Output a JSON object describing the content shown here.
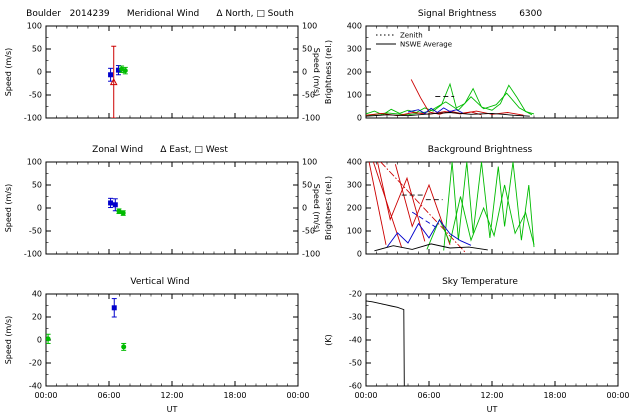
{
  "header": {
    "station": "Boulder",
    "date_yyyyddd": "2014239"
  },
  "axis": {
    "xlim": [
      0,
      24
    ],
    "x_ticks": [
      0,
      6,
      12,
      18,
      24
    ],
    "x_tick_labels": [
      "00:00",
      "06:00",
      "12:00",
      "18:00",
      "00:00"
    ],
    "x_label": "UT"
  },
  "colors": {
    "north_south": "#0000cc",
    "zenith_green": "#00bb00",
    "error_red": "#cc0000",
    "black": "#000000"
  },
  "chart_data": [
    {
      "id": "meridional-wind",
      "grid": {
        "row": 0,
        "col": 0
      },
      "type": "scatter",
      "title": "Boulder   2014239      Meridional Wind      Δ North, □ South",
      "ylabel": "Speed (m/s)",
      "ylabel_right": "Speed (m/s)",
      "ylim": [
        -100,
        100
      ],
      "yticks": [
        -100,
        -50,
        0,
        50,
        100
      ],
      "mirror_right": true,
      "points": [
        {
          "x": 6.15,
          "y": -6,
          "err": 14,
          "color": "#0000cc",
          "marker": "square"
        },
        {
          "x": 6.45,
          "y": -22,
          "err": 78,
          "color": "#cc0000",
          "marker": "triangle"
        },
        {
          "x": 6.9,
          "y": 4,
          "err": 10,
          "color": "#0000cc",
          "marker": "square"
        },
        {
          "x": 7.2,
          "y": 6,
          "err": 7,
          "color": "#00bb00",
          "marker": "circle"
        },
        {
          "x": 7.55,
          "y": 3,
          "err": 7,
          "color": "#00bb00",
          "marker": "circle"
        }
      ]
    },
    {
      "id": "signal-brightness",
      "grid": {
        "row": 0,
        "col": 1
      },
      "type": "line",
      "title": "Signal Brightness        6300",
      "ylabel": "Brightness (rel.)",
      "ylim": [
        0,
        400
      ],
      "yticks": [
        0,
        100,
        200,
        300,
        400
      ],
      "legend": [
        {
          "label": "Zenith",
          "style": "dotted",
          "color": "#000000"
        },
        {
          "label": "NSWE Average",
          "style": "solid",
          "color": "#000000"
        }
      ],
      "series": [
        {
          "color": "#00bb00",
          "style": "solid",
          "points": [
            [
              0,
              18
            ],
            [
              0.8,
              30
            ],
            [
              1.6,
              14
            ],
            [
              2.4,
              38
            ],
            [
              3.2,
              20
            ],
            [
              4,
              34
            ],
            [
              4.8,
              24
            ],
            [
              5.6,
              44
            ],
            [
              6.4,
              30
            ],
            [
              7.2,
              58
            ],
            [
              8,
              148
            ],
            [
              8.6,
              44
            ],
            [
              9.4,
              62
            ],
            [
              10.2,
              128
            ],
            [
              11,
              48
            ],
            [
              12,
              34
            ],
            [
              12.8,
              62
            ],
            [
              13.6,
              142
            ],
            [
              14.4,
              88
            ],
            [
              15.2,
              28
            ],
            [
              16,
              18
            ]
          ]
        },
        {
          "color": "#00bb00",
          "style": "solid",
          "points": [
            [
              0,
              10
            ],
            [
              2,
              22
            ],
            [
              4,
              14
            ],
            [
              6,
              28
            ],
            [
              7.6,
              70
            ],
            [
              8.8,
              34
            ],
            [
              10,
              92
            ],
            [
              11.2,
              40
            ],
            [
              12.4,
              58
            ],
            [
              13.4,
              108
            ],
            [
              14.6,
              44
            ],
            [
              15.8,
              14
            ]
          ]
        },
        {
          "color": "#cc0000",
          "style": "solid",
          "points": [
            [
              4.3,
              168
            ],
            [
              5.2,
              88
            ],
            [
              6,
              26
            ],
            [
              7,
              16
            ],
            [
              8,
              30
            ],
            [
              9,
              20
            ],
            [
              10,
              26
            ],
            [
              11,
              14
            ]
          ]
        },
        {
          "color": "#cc0000",
          "style": "solid",
          "points": [
            [
              0,
              12
            ],
            [
              1.5,
              20
            ],
            [
              3,
              10
            ],
            [
              4.5,
              24
            ],
            [
              6,
              16
            ],
            [
              7.5,
              28
            ],
            [
              9,
              18
            ],
            [
              10.5,
              30
            ],
            [
              12,
              16
            ],
            [
              13.5,
              24
            ],
            [
              15,
              12
            ]
          ]
        },
        {
          "color": "#0000cc",
          "style": "solid",
          "points": [
            [
              4,
              26
            ],
            [
              5,
              36
            ],
            [
              5.6,
              20
            ],
            [
              6.2,
              42
            ],
            [
              6.8,
              24
            ],
            [
              7.4,
              44
            ],
            [
              8,
              28
            ],
            [
              8.6,
              36
            ],
            [
              9.2,
              22
            ]
          ]
        },
        {
          "color": "#000000",
          "style": "solid",
          "points": [
            [
              0,
              8
            ],
            [
              2,
              14
            ],
            [
              4,
              10
            ],
            [
              6,
              18
            ],
            [
              8,
              24
            ],
            [
              10,
              16
            ],
            [
              12,
              20
            ],
            [
              14,
              12
            ],
            [
              15.6,
              8
            ]
          ]
        },
        {
          "color": "#000000",
          "style": "dashed",
          "points": [
            [
              6.6,
              94
            ],
            [
              8.4,
              94
            ]
          ]
        }
      ]
    },
    {
      "id": "zonal-wind",
      "grid": {
        "row": 1,
        "col": 0
      },
      "type": "scatter",
      "title": "Zonal Wind      Δ East, □ West",
      "ylabel": "Speed (m/s)",
      "ylabel_right": "Speed (m/s)",
      "ylim": [
        -100,
        100
      ],
      "yticks": [
        -100,
        -50,
        0,
        50,
        100
      ],
      "mirror_right": true,
      "points": [
        {
          "x": 6.15,
          "y": 11,
          "err": 10,
          "color": "#0000cc",
          "marker": "square"
        },
        {
          "x": 6.6,
          "y": 7,
          "err": 13,
          "color": "#0000cc",
          "marker": "square"
        },
        {
          "x": 6.95,
          "y": -7,
          "err": 5,
          "color": "#00bb00",
          "marker": "circle"
        },
        {
          "x": 7.35,
          "y": -11,
          "err": 5,
          "color": "#00bb00",
          "marker": "circle"
        }
      ]
    },
    {
      "id": "background-brightness",
      "grid": {
        "row": 1,
        "col": 1
      },
      "type": "line",
      "title": "Background Brightness",
      "ylabel": "Brightness (rel.)",
      "ylim": [
        0,
        400
      ],
      "yticks": [
        0,
        100,
        200,
        300,
        400
      ],
      "series": [
        {
          "color": "#cc0000",
          "style": "solid",
          "points": [
            [
              0.3,
              400
            ],
            [
              1.9,
              40
            ]
          ]
        },
        {
          "color": "#cc0000",
          "style": "solid",
          "points": [
            [
              0.7,
              400
            ],
            [
              3.4,
              28
            ]
          ]
        },
        {
          "color": "#cc0000",
          "style": "solid",
          "points": [
            [
              1.1,
              400
            ],
            [
              2.3,
              150
            ],
            [
              3.9,
              330
            ],
            [
              5.6,
              55
            ]
          ]
        },
        {
          "color": "#cc0000",
          "style": "dashdot",
          "points": [
            [
              1.4,
              400
            ],
            [
              9.5,
              5
            ]
          ]
        },
        {
          "color": "#cc0000",
          "style": "solid",
          "points": [
            [
              2.8,
              390
            ],
            [
              4.4,
              120
            ],
            [
              6,
              300
            ],
            [
              8,
              40
            ]
          ]
        },
        {
          "color": "#00bb00",
          "style": "solid",
          "points": [
            [
              7.4,
              15
            ],
            [
              8.2,
              400
            ],
            [
              8.8,
              60
            ],
            [
              9.6,
              400
            ],
            [
              10.2,
              90
            ],
            [
              11,
              400
            ],
            [
              11.8,
              70
            ],
            [
              12.6,
              380
            ],
            [
              13.2,
              120
            ],
            [
              14,
              400
            ],
            [
              14.8,
              60
            ],
            [
              15.5,
              300
            ],
            [
              16,
              30
            ]
          ]
        },
        {
          "color": "#00bb00",
          "style": "solid",
          "points": [
            [
              5.8,
              20
            ],
            [
              7,
              150
            ],
            [
              8,
              50
            ],
            [
              9,
              250
            ],
            [
              10,
              60
            ],
            [
              11.2,
              200
            ],
            [
              12.2,
              80
            ],
            [
              13.2,
              300
            ],
            [
              14.2,
              90
            ],
            [
              15.2,
              180
            ],
            [
              16,
              40
            ]
          ]
        },
        {
          "color": "#0000cc",
          "style": "solid",
          "points": [
            [
              2,
              30
            ],
            [
              3,
              92
            ],
            [
              4,
              48
            ],
            [
              5,
              132
            ],
            [
              6,
              70
            ],
            [
              7,
              148
            ],
            [
              8,
              88
            ],
            [
              9,
              58
            ],
            [
              10,
              38
            ]
          ]
        },
        {
          "color": "#0000cc",
          "style": "dashed",
          "points": [
            [
              4.4,
              182
            ],
            [
              6.6,
              118
            ]
          ]
        },
        {
          "color": "#000000",
          "style": "dashed",
          "points": [
            [
              3.4,
              256
            ],
            [
              5.4,
              256
            ]
          ]
        },
        {
          "color": "#000000",
          "style": "dashed",
          "points": [
            [
              5.7,
              236
            ],
            [
              7.3,
              236
            ]
          ]
        },
        {
          "color": "#000000",
          "style": "solid",
          "points": [
            [
              0.8,
              14
            ],
            [
              2.6,
              36
            ],
            [
              4.4,
              20
            ],
            [
              6.2,
              44
            ],
            [
              8,
              26
            ],
            [
              9.8,
              30
            ],
            [
              11.6,
              18
            ]
          ]
        }
      ]
    },
    {
      "id": "vertical-wind",
      "grid": {
        "row": 2,
        "col": 0
      },
      "type": "scatter",
      "title": "Vertical Wind",
      "ylabel": "Speed (m/s)",
      "ylim": [
        -40,
        40
      ],
      "yticks": [
        -40,
        -20,
        0,
        20,
        40
      ],
      "show_x_labels": true,
      "points": [
        {
          "x": 0.2,
          "y": 1,
          "err": 4,
          "color": "#00bb00",
          "marker": "circle"
        },
        {
          "x": 6.5,
          "y": 28,
          "err": 8,
          "color": "#0000cc",
          "marker": "square"
        },
        {
          "x": 7.4,
          "y": -6,
          "err": 3,
          "color": "#00bb00",
          "marker": "circle"
        }
      ]
    },
    {
      "id": "sky-temperature",
      "grid": {
        "row": 2,
        "col": 1
      },
      "type": "line",
      "title": "Sky Temperature",
      "ylabel": "(K)",
      "ylim": [
        -60,
        -20
      ],
      "yticks": [
        -60,
        -50,
        -40,
        -30,
        -20
      ],
      "show_x_labels": true,
      "series": [
        {
          "color": "#000000",
          "style": "solid",
          "points": [
            [
              0,
              -23
            ],
            [
              0.6,
              -23.4
            ],
            [
              1.2,
              -24
            ],
            [
              1.8,
              -24.6
            ],
            [
              2.4,
              -25.2
            ],
            [
              3,
              -25.8
            ],
            [
              3.3,
              -26.3
            ],
            [
              3.6,
              -26.8
            ],
            [
              3.65,
              -60
            ]
          ]
        }
      ]
    }
  ]
}
